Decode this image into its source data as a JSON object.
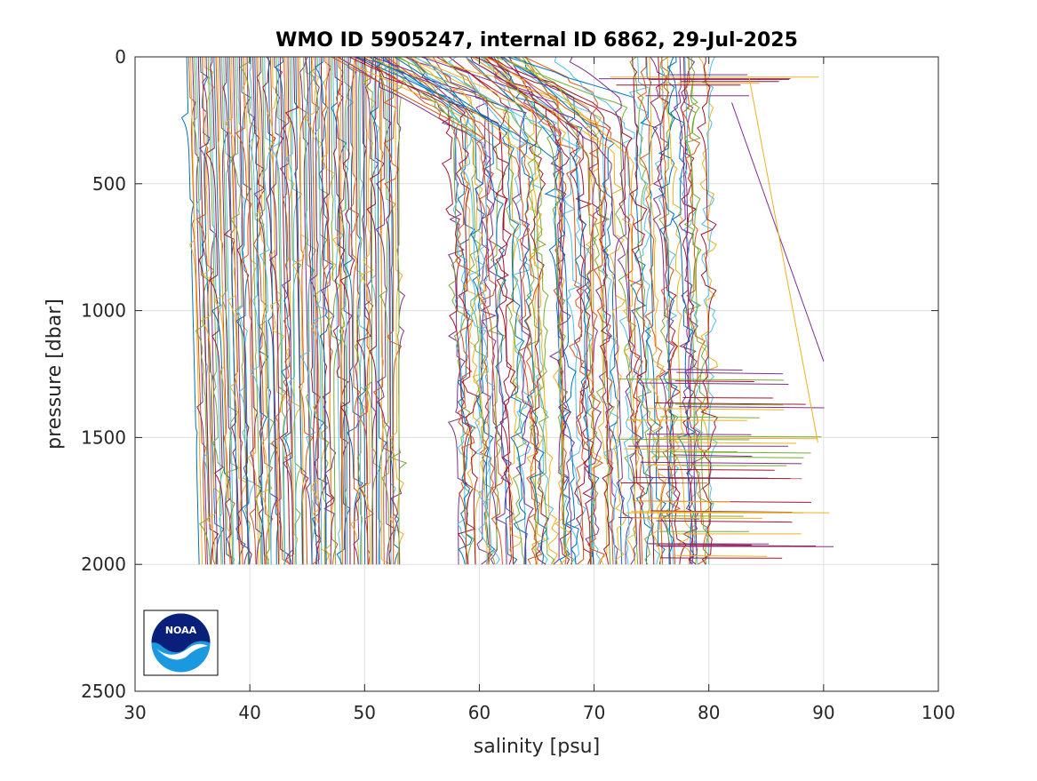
{
  "chart_data": {
    "type": "line",
    "title": "WMO ID 5905247, internal ID 6862, 29-Jul-2025",
    "xlabel": "salinity [psu]",
    "ylabel": "pressure [dbar]",
    "xlim": [
      30,
      100
    ],
    "ylim": [
      2500,
      0
    ],
    "y_reversed": true,
    "x_ticks": [
      "30",
      "40",
      "50",
      "60",
      "70",
      "80",
      "90",
      "100"
    ],
    "y_ticks": [
      "0",
      "500",
      "1000",
      "1500",
      "2000",
      "2500"
    ],
    "grid": true,
    "legend": "none",
    "logo": "NOAA",
    "palette": [
      "#0072BD",
      "#D95319",
      "#EDB120",
      "#7E2F8E",
      "#77AC30",
      "#4DBEEE",
      "#A2142F"
    ],
    "series_groups": [
      {
        "cluster": "left",
        "profile_count": 110,
        "surface_salinity_range": [
          34.5,
          53.0
        ],
        "bottom_salinity_range": [
          35.8,
          53.0
        ],
        "max_pressure": 2000
      },
      {
        "cluster": "right",
        "profile_count": 95,
        "surface_salinity_range": [
          53.5,
          80.5
        ],
        "bottom_salinity_range": [
          58.0,
          80.2
        ],
        "max_pressure": 2000
      }
    ],
    "spike_excursions_salinity_range": [
      72,
      91
    ],
    "spike_excursions_pressure_range": [
      1180,
      1990
    ]
  }
}
